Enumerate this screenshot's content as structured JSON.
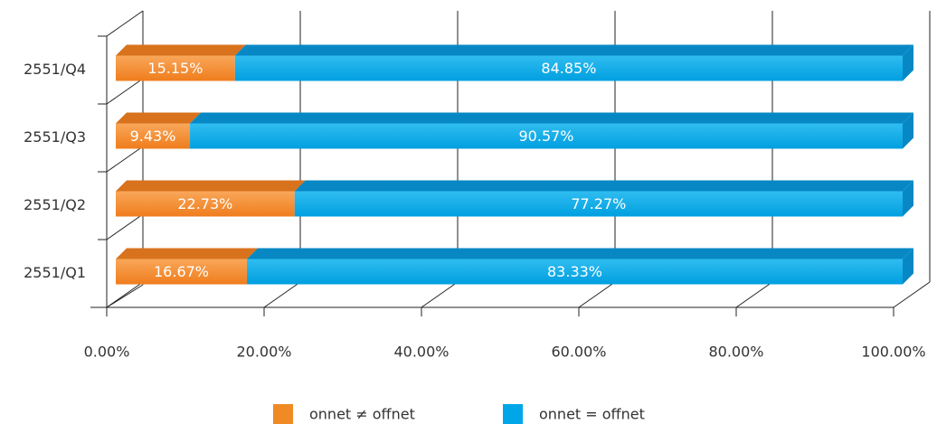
{
  "chart_data": {
    "type": "bar",
    "stacked": true,
    "orientation": "horizontal",
    "categories": [
      "2551/Q4",
      "2551/Q3",
      "2551/Q2",
      "2551/Q1"
    ],
    "series": [
      {
        "name": "onnet ≠ offnet",
        "color": "#f08a24",
        "values": [
          15.15,
          9.43,
          22.73,
          16.67
        ],
        "value_labels": [
          "15.15%",
          "9.43%",
          "22.73%",
          "16.67%"
        ]
      },
      {
        "name": "onnet = offnet",
        "color": "#00a6e8",
        "values": [
          84.85,
          90.57,
          77.27,
          83.33
        ],
        "value_labels": [
          "84.85%",
          "90.57%",
          "77.27%",
          "83.33%"
        ]
      }
    ],
    "xlim": [
      0,
      100
    ],
    "xticks": [
      {
        "value": 0,
        "label": "0.00%"
      },
      {
        "value": 20,
        "label": "20.00%"
      },
      {
        "value": 40,
        "label": "40.00%"
      },
      {
        "value": 60,
        "label": "60.00%"
      },
      {
        "value": 80,
        "label": "80.00%"
      },
      {
        "value": 100,
        "label": "100.00%"
      }
    ],
    "grid": true,
    "legend": "bottom"
  }
}
